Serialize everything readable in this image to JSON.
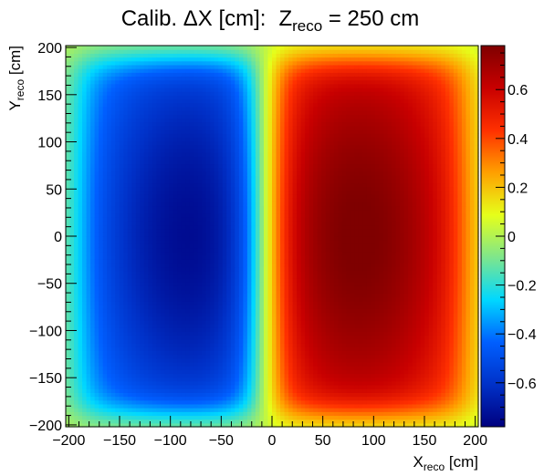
{
  "chart_data": {
    "type": "heatmap",
    "title": {
      "prefix": "Calib. ",
      "delta": "Δ",
      "quantity": "X [cm]:",
      "z_symbol": "Z",
      "z_sub": "reco",
      "z_value": " = 250 cm"
    },
    "xlabel": {
      "symbol": "X",
      "sub": "reco",
      "unit": " [cm]"
    },
    "ylabel": {
      "symbol": "Y",
      "sub": "reco",
      "unit": " [cm]"
    },
    "xlim": [
      -203,
      203
    ],
    "ylim": [
      -202,
      202
    ],
    "x_ticks": [
      {
        "value": -200,
        "label": "−200"
      },
      {
        "value": -150,
        "label": "−150"
      },
      {
        "value": -100,
        "label": "−100"
      },
      {
        "value": -50,
        "label": "−50"
      },
      {
        "value": 0,
        "label": "0"
      },
      {
        "value": 50,
        "label": "50"
      },
      {
        "value": 100,
        "label": "100"
      },
      {
        "value": 150,
        "label": "150"
      },
      {
        "value": 200,
        "label": "200"
      }
    ],
    "y_ticks": [
      {
        "value": -200,
        "label": "−200"
      },
      {
        "value": -150,
        "label": "−150"
      },
      {
        "value": -100,
        "label": "−100"
      },
      {
        "value": -50,
        "label": "−50"
      },
      {
        "value": 0,
        "label": "0"
      },
      {
        "value": 50,
        "label": "50"
      },
      {
        "value": 100,
        "label": "100"
      },
      {
        "value": 150,
        "label": "150"
      },
      {
        "value": 200,
        "label": "200"
      }
    ],
    "colorbar": {
      "range": [
        -0.78,
        0.78
      ],
      "ticks": [
        {
          "value": -0.6,
          "label": "−0.6"
        },
        {
          "value": -0.4,
          "label": "−0.4"
        },
        {
          "value": -0.2,
          "label": "−0.2"
        },
        {
          "value": 0,
          "label": "0"
        },
        {
          "value": 0.2,
          "label": "0.2"
        },
        {
          "value": 0.4,
          "label": "0.4"
        },
        {
          "value": 0.6,
          "label": "0.6"
        }
      ],
      "palette": [
        "#00007f",
        "#0031c8",
        "#005fff",
        "#00d8ff",
        "#7ee68c",
        "#e6ff1a",
        "#ffa000",
        "#ff3000",
        "#c80000",
        "#7f0000"
      ]
    },
    "field": {
      "left_lobe": {
        "center_x": -80,
        "center_y": 0,
        "peak": -0.76
      },
      "right_lobe": {
        "center_x": 85,
        "center_y": 0,
        "peak": 0.77
      },
      "transition_x": -8
    }
  }
}
